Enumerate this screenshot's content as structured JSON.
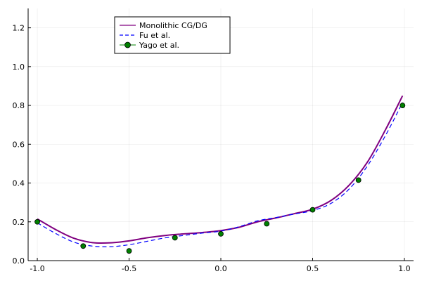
{
  "chart_data": {
    "type": "line",
    "xlim": [
      -1.05,
      1.05
    ],
    "ylim": [
      0.0,
      1.3
    ],
    "x_ticks": [
      -1.0,
      -0.5,
      0.0,
      0.5,
      1.0
    ],
    "x_tick_labels": [
      "-1.0",
      "-0.5",
      "0.0",
      "0.5",
      "1.0"
    ],
    "y_ticks": [
      0.0,
      0.2,
      0.4,
      0.6,
      0.8,
      1.0,
      1.2
    ],
    "y_tick_labels": [
      "0.0",
      "0.2",
      "0.4",
      "0.6",
      "0.8",
      "1.0",
      "1.2"
    ],
    "grid": true,
    "legend_position": "top-left",
    "series": [
      {
        "name": "Monolithic CG/DG",
        "style": "solid",
        "color": "#800080",
        "x": [
          -1.0,
          -0.9,
          -0.8,
          -0.7,
          -0.6,
          -0.5,
          -0.4,
          -0.3,
          -0.2,
          -0.1,
          0.0,
          0.1,
          0.2,
          0.3,
          0.4,
          0.5,
          0.6,
          0.7,
          0.8,
          0.9,
          0.99
        ],
        "y": [
          0.215,
          0.16,
          0.115,
          0.093,
          0.092,
          0.102,
          0.118,
          0.13,
          0.138,
          0.145,
          0.155,
          0.172,
          0.2,
          0.22,
          0.242,
          0.265,
          0.31,
          0.39,
          0.51,
          0.68,
          0.85
        ]
      },
      {
        "name": "Fu et al.",
        "style": "dashed",
        "color": "#0000ff",
        "x": [
          -1.0,
          -0.9,
          -0.8,
          -0.7,
          -0.6,
          -0.5,
          -0.4,
          -0.3,
          -0.2,
          -0.1,
          0.0,
          0.1,
          0.2,
          0.3,
          0.4,
          0.5,
          0.6,
          0.7,
          0.8,
          0.9,
          0.99
        ],
        "y": [
          0.195,
          0.14,
          0.095,
          0.075,
          0.072,
          0.082,
          0.1,
          0.118,
          0.13,
          0.142,
          0.152,
          0.175,
          0.205,
          0.222,
          0.24,
          0.258,
          0.295,
          0.37,
          0.49,
          0.65,
          0.815
        ]
      },
      {
        "name": "Yago et al.",
        "style": "markers",
        "color": "#008000",
        "x": [
          -1.0,
          -0.75,
          -0.5,
          -0.25,
          0.0,
          0.25,
          0.5,
          0.75,
          0.99
        ],
        "y": [
          0.2,
          0.075,
          0.05,
          0.118,
          0.138,
          0.19,
          0.262,
          0.415,
          0.8
        ]
      }
    ]
  }
}
